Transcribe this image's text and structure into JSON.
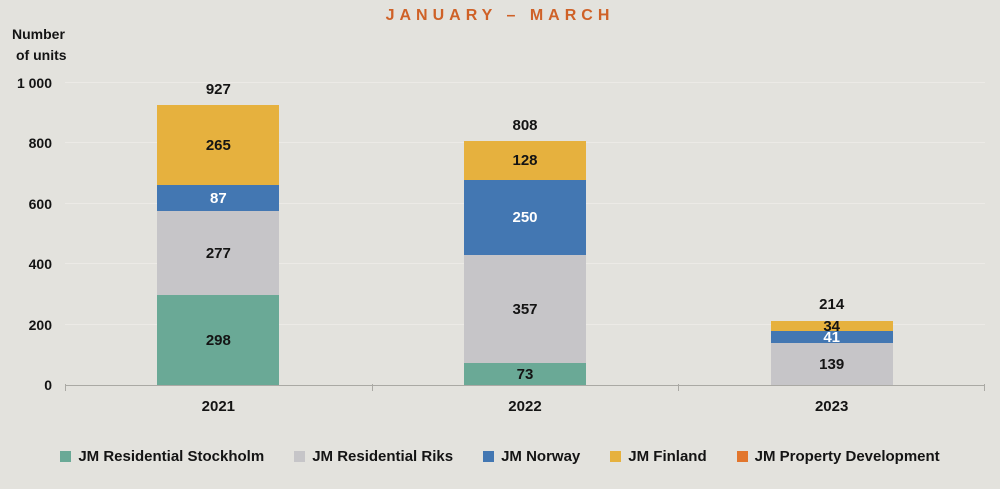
{
  "title": "JANUARY – MARCH",
  "y_axis_title": {
    "line1": "Number",
    "line2": "of units"
  },
  "chart_data": {
    "type": "bar",
    "stacked": true,
    "title": "JANUARY – MARCH",
    "ylabel": "Number of units",
    "xlabel": "",
    "categories": [
      "2021",
      "2022",
      "2023"
    ],
    "series": [
      {
        "name": "JM Residential Stockholm",
        "color": "#6aa996",
        "label_color": "#141414",
        "values": [
          298,
          73,
          0
        ]
      },
      {
        "name": "JM Residential Riks",
        "color": "#c6c5c8",
        "label_color": "#141414",
        "values": [
          277,
          357,
          139
        ]
      },
      {
        "name": "JM Norway",
        "color": "#4377b2",
        "label_color": "#ffffff",
        "values": [
          87,
          250,
          41
        ]
      },
      {
        "name": "JM Finland",
        "color": "#e6b13e",
        "label_color": "#141414",
        "values": [
          265,
          128,
          34
        ]
      },
      {
        "name": "JM Property Development",
        "color": "#e2762d",
        "label_color": "#141414",
        "values": [
          0,
          0,
          0
        ]
      }
    ],
    "totals": [
      "927",
      "808",
      "214"
    ],
    "yticks": [
      {
        "label": "0",
        "value": 0
      },
      {
        "label": "200",
        "value": 200
      },
      {
        "label": "400",
        "value": 400
      },
      {
        "label": "600",
        "value": 600
      },
      {
        "label": "800",
        "value": 800
      },
      {
        "label": "1 000",
        "value": 1000
      }
    ],
    "ylim": [
      0,
      1000
    ],
    "grid": true,
    "legend_position": "bottom"
  },
  "colors": {
    "background": "#e3e2dd",
    "title": "#cf6127",
    "grid": "#eceae6",
    "axis": "#aaa9a4",
    "text": "#141414"
  }
}
